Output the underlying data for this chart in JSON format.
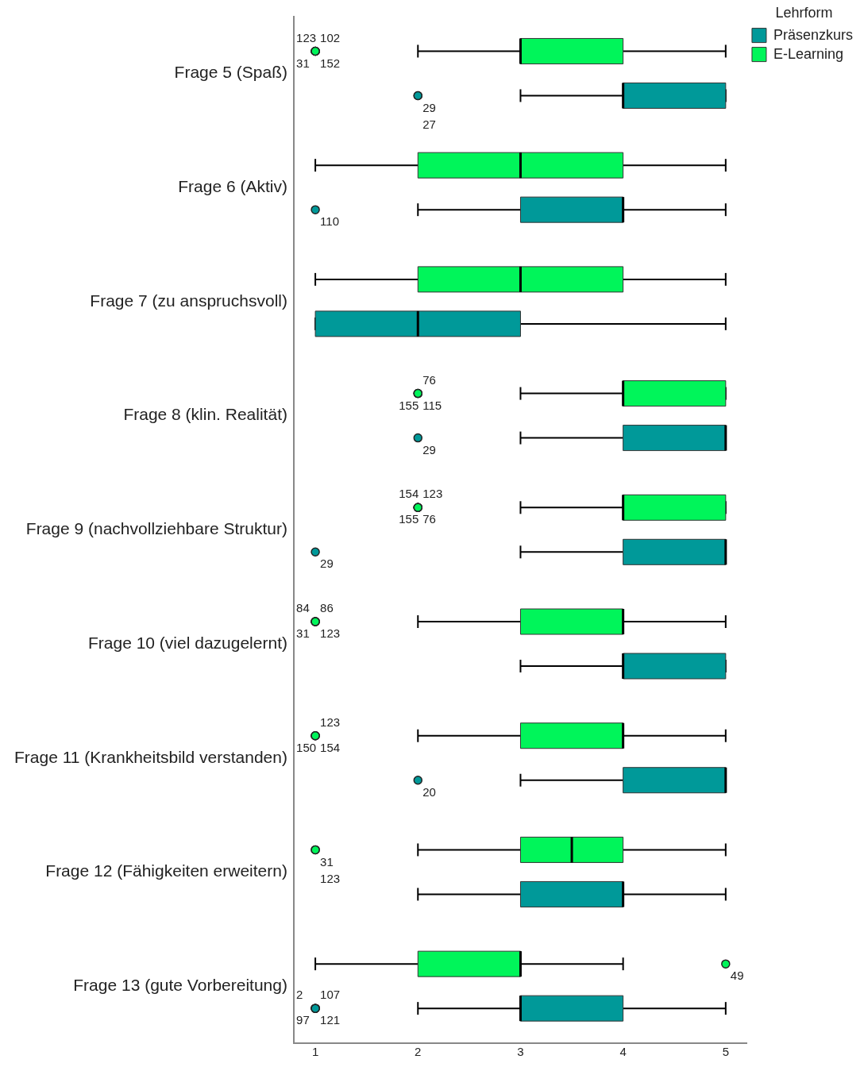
{
  "chart_data": {
    "type": "box",
    "orientation": "horizontal",
    "legend_title": "Lehrform",
    "legend": "top right",
    "grid": false,
    "categories": [
      "Frage 5 (Spaß)",
      "Frage 6 (Aktiv)",
      "Frage 7 (zu anspruchsvoll)",
      "Frage 8 (klin. Realität)",
      "Frage 9 (nachvollziehbare Struktur)",
      "Frage 10 (viel dazugelernt)",
      "Frage 11 (Krankheitsbild verstanden)",
      "Frage 12 (Fähigkeiten erweitern)",
      "Frage 13 (gute Vorbereitung)"
    ],
    "xlim": [
      0.79,
      5.21
    ],
    "xticks": [
      1,
      2,
      3,
      4,
      5
    ],
    "series": [
      {
        "name": "Präsenzkurs",
        "color": "#009999",
        "boxes": [
          {
            "low": 3,
            "q1": 4,
            "median": 4,
            "q3": 5,
            "high": 5,
            "outliers": [
              2,
              2
            ]
          },
          {
            "low": 2,
            "q1": 3,
            "median": 4,
            "q3": 4,
            "high": 5,
            "outliers": [
              1
            ]
          },
          {
            "low": 1,
            "q1": 1,
            "median": 2,
            "q3": 3,
            "high": 5
          },
          {
            "low": 3,
            "q1": 4,
            "median": 5,
            "q3": 5,
            "high": 5,
            "outliers": [
              2
            ]
          },
          {
            "low": 3,
            "q1": 4,
            "median": 5,
            "q3": 5,
            "high": 5,
            "outliers": [
              1
            ]
          },
          {
            "low": 3,
            "q1": 4,
            "median": 4,
            "q3": 5,
            "high": 5
          },
          {
            "low": 3,
            "q1": 4,
            "median": 5,
            "q3": 5,
            "high": 5,
            "outliers": [
              2
            ]
          },
          {
            "low": 2,
            "q1": 3,
            "median": 4,
            "q3": 4,
            "high": 5
          },
          {
            "low": 2,
            "q1": 3,
            "median": 3,
            "q3": 4,
            "high": 5,
            "outliers": [
              1,
              1,
              1,
              1
            ]
          }
        ]
      },
      {
        "name": "E-Learning",
        "color": "#00f55a",
        "boxes": [
          {
            "low": 2,
            "q1": 3,
            "median": 3,
            "q3": 4,
            "high": 5,
            "outliers": [
              1,
              1,
              1,
              1
            ]
          },
          {
            "low": 1,
            "q1": 2,
            "median": 3,
            "q3": 4,
            "high": 5
          },
          {
            "low": 1,
            "q1": 2,
            "median": 3,
            "q3": 4,
            "high": 5
          },
          {
            "low": 3,
            "q1": 4,
            "median": 4,
            "q3": 5,
            "high": 5,
            "outliers": [
              2,
              2,
              2
            ]
          },
          {
            "low": 3,
            "q1": 4,
            "median": 4,
            "q3": 5,
            "high": 5,
            "outliers": [
              2,
              2,
              2,
              2
            ]
          },
          {
            "low": 2,
            "q1": 3,
            "median": 4,
            "q3": 4,
            "high": 5,
            "outliers": [
              1,
              1,
              1,
              1
            ]
          },
          {
            "low": 2,
            "q1": 3,
            "median": 4,
            "q3": 4,
            "high": 5,
            "outliers": [
              1,
              1,
              1
            ]
          },
          {
            "low": 2,
            "q1": 3,
            "median": 3.5,
            "q3": 4,
            "high": 5,
            "outliers": [
              1,
              1
            ]
          },
          {
            "low": 1,
            "q1": 2,
            "median": 3,
            "q3": 3,
            "high": 4,
            "outliers": [
              5
            ]
          }
        ]
      }
    ],
    "annotations": [
      "123",
      "102",
      "31",
      "152",
      "29",
      "27",
      "110",
      "76",
      "155",
      "115",
      "29",
      "154",
      "123",
      "155",
      "76",
      "29",
      "84",
      "86",
      "31",
      "123",
      "123",
      "150",
      "154",
      "20",
      "31",
      "123",
      "49",
      "2",
      "107",
      "97",
      "121"
    ]
  }
}
